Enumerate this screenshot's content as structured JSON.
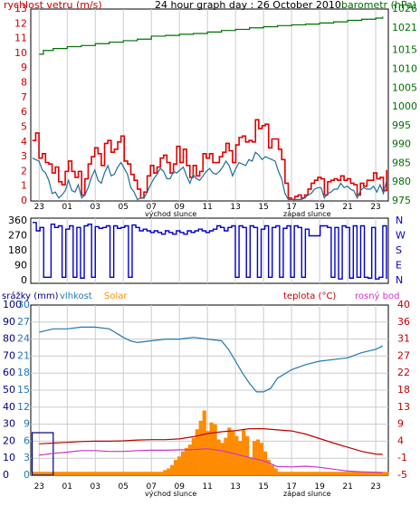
{
  "chart_data": [
    {
      "type": "line",
      "title": "24 hour graph day : 26 October 2010",
      "left_axis_label": "rychlost vetru (m/s)",
      "right_axis_label": "barometr (hPa)",
      "left_ticks": [
        "0",
        "1",
        "2",
        "3",
        "4",
        "5",
        "6",
        "7",
        "8",
        "9",
        "10",
        "11",
        "12",
        "13"
      ],
      "right_ticks": [
        "975",
        "980",
        "985",
        "990",
        "995",
        "1000",
        "1005",
        "1010",
        "1015",
        "1021",
        "1026"
      ],
      "x_ticks": [
        "23",
        "01",
        "03",
        "05",
        "07",
        "09",
        "11",
        "13",
        "15",
        "17",
        "19",
        "21",
        "23"
      ],
      "annotations": [
        "východ slunce",
        "západ slunce"
      ],
      "ylim_left": [
        0,
        13
      ],
      "ylim_right": [
        975,
        1026
      ],
      "colors": {
        "gust": "#e00000",
        "wind": "#1e6f9a",
        "pressure": "#007000",
        "left_axis": "#cc0000",
        "right_axis": "#007000"
      },
      "series": [
        {
          "role": "gust",
          "axis": "left",
          "values": [
            4.1,
            4.6,
            2.9,
            3.2,
            2.6,
            2.5,
            1.9,
            2.3,
            1.3,
            1.1,
            2.0,
            2.7,
            2.0,
            1.6,
            2.0,
            0.4,
            1.5,
            2.5,
            3.0,
            3.6,
            3.2,
            2.4,
            3.9,
            4.1,
            3.3,
            3.5,
            4.0,
            4.4,
            2.7,
            2.5,
            1.8,
            1.4,
            0.8,
            0.2,
            0.6,
            1.7,
            2.4,
            1.9,
            2.3,
            2.9,
            3.1,
            2.6,
            1.9,
            2.5,
            3.7,
            2.6,
            3.5,
            2.4,
            1.6,
            2.4,
            1.7,
            2.0,
            3.2,
            2.9,
            3.2,
            2.6,
            2.6,
            3.0,
            3.3,
            3.9,
            3.4,
            2.6,
            3.8,
            4.3,
            4.4,
            4.0,
            4.1,
            4.0,
            5.5,
            4.9,
            5.1,
            5.2,
            3.6,
            4.2,
            4.2,
            3.5,
            2.8,
            1.2,
            0.2,
            0.1,
            0.3,
            0.4,
            0.2,
            0.4,
            0.8,
            1.2,
            1.4,
            1.6,
            1.5,
            0.4,
            1.3,
            1.4,
            1.5,
            1.4,
            1.7,
            1.4,
            1.5,
            1.2,
            1.1,
            0.4,
            1.2,
            1.0,
            1.4,
            1.4,
            1.9,
            1.5,
            1.6,
            0.7,
            2.1
          ]
        },
        {
          "role": "wind",
          "axis": "left",
          "values": [
            2.9,
            2.8,
            2.7,
            2.1,
            1.9,
            1.4,
            0.5,
            0.6,
            0.2,
            0.4,
            0.7,
            1.4,
            0.7,
            0.6,
            1.1,
            0.2,
            0.4,
            0.9,
            1.6,
            2.1,
            1.4,
            1.2,
            1.9,
            2.4,
            1.7,
            1.8,
            2.3,
            2.6,
            2.2,
            1.8,
            0.9,
            0.6,
            0.1,
            0.2,
            0.2,
            0.6,
            1.1,
            1.5,
            1.8,
            2.2,
            2.0,
            1.5,
            1.5,
            2.0,
            1.9,
            2.1,
            2.3,
            1.7,
            1.2,
            1.8,
            1.5,
            1.4,
            1.7,
            2.0,
            2.2,
            1.9,
            1.8,
            2.0,
            2.3,
            2.7,
            2.4,
            1.7,
            2.2,
            2.6,
            2.5,
            2.4,
            2.8,
            2.7,
            3.3,
            3.1,
            2.8,
            3.0,
            2.9,
            2.8,
            2.7,
            2.0,
            1.5,
            0.5,
            0.1,
            0.1,
            0.1,
            0.1,
            0.1,
            0.2,
            0.4,
            0.5,
            0.8,
            0.9,
            0.9,
            0.2,
            0.5,
            0.6,
            0.8,
            0.8,
            1.2,
            0.9,
            1.0,
            0.8,
            0.7,
            0.2,
            0.7,
            0.9,
            0.8,
            0.8,
            1.0,
            0.6,
            1.1,
            0.5,
            1.4
          ]
        },
        {
          "role": "pressure",
          "axis": "right",
          "x": [
            -1,
            -0.7,
            0,
            1,
            2,
            3,
            4,
            5,
            6,
            7,
            8,
            9,
            10,
            11,
            12,
            13,
            14,
            15,
            16,
            17,
            18,
            19,
            20,
            21,
            22,
            23,
            23.5
          ],
          "values": [
            1014,
            1015,
            1015.5,
            1016,
            1016.3,
            1016.8,
            1017.2,
            1017.6,
            1018,
            1018.8,
            1019,
            1019.3,
            1019.5,
            1019.9,
            1020.3,
            1020.6,
            1021,
            1021.3,
            1021.6,
            1021.8,
            1022,
            1022.3,
            1022.6,
            1023,
            1023.3,
            1023.6,
            1024
          ]
        }
      ]
    },
    {
      "type": "line",
      "left_ticks": [
        "0",
        "90",
        "180",
        "270",
        "360"
      ],
      "right_ticks": [
        "N",
        "W",
        "S",
        "E",
        "N"
      ],
      "ylim": [
        0,
        360
      ],
      "colors": {
        "direction": "#0000c8"
      },
      "series": [
        {
          "role": "wind-direction",
          "values": [
            350,
            300,
            320,
            20,
            20,
            340,
            320,
            330,
            20,
            310,
            330,
            20,
            320,
            15,
            330,
            340,
            20,
            325,
            315,
            320,
            330,
            20,
            330,
            315,
            320,
            330,
            20,
            335,
            320,
            300,
            310,
            300,
            290,
            300,
            290,
            280,
            300,
            290,
            280,
            300,
            290,
            280,
            300,
            290,
            300,
            310,
            300,
            290,
            300,
            310,
            330,
            320,
            300,
            320,
            330,
            20,
            330,
            320,
            20,
            330,
            320,
            20,
            310,
            330,
            20,
            320,
            330,
            20,
            315,
            330,
            20,
            330,
            320,
            20,
            310,
            270,
            270,
            270,
            330,
            330,
            320,
            20,
            320,
            10,
            330,
            320,
            15,
            330,
            20,
            330,
            20,
            15,
            320,
            10,
            20,
            330,
            10
          ]
        }
      ]
    },
    {
      "type": "line",
      "label_rain": "srážky (mm)",
      "label_humidity": "vlhkost",
      "label_solar": "Solar",
      "label_temp": "teplota (°C)",
      "label_dew": "rosný bod",
      "left_ticks_a": [
        "0",
        "10",
        "20",
        "30",
        "40",
        "50",
        "60",
        "70",
        "80",
        "90",
        "100"
      ],
      "left_ticks_b": [
        "0",
        "3",
        "6",
        "9",
        "12",
        "15",
        "18",
        "21",
        "24",
        "27",
        "30"
      ],
      "right_ticks": [
        "-5",
        "-1",
        "4",
        "9",
        "13",
        "18",
        "22",
        "27",
        "31",
        "36",
        "40"
      ],
      "colors": {
        "rain": "#000080",
        "humidity": "#1f78b4",
        "solar": "#ff8c00",
        "temperature": "#c00000",
        "dew": "#cc33cc",
        "axis_a": "#000080",
        "axis_b": "#1f78b4",
        "right_axis": "#c00000"
      },
      "series": [
        {
          "role": "humidity",
          "axis": "percent",
          "x": [
            -1,
            -0.5,
            0,
            1,
            2,
            3,
            4,
            5,
            5.5,
            6,
            7,
            8,
            9,
            10,
            11,
            12,
            12.5,
            13,
            13.5,
            14,
            14.5,
            15,
            15.5,
            16,
            17,
            18,
            19,
            20,
            21,
            22,
            23,
            23.5
          ],
          "values": [
            84,
            85,
            86,
            86,
            87,
            87,
            86,
            81,
            79,
            78,
            79,
            80,
            80,
            81,
            80,
            79,
            74,
            67,
            60,
            54,
            49,
            49,
            51,
            57,
            62,
            65,
            67,
            68,
            69,
            72,
            74,
            76
          ]
        },
        {
          "role": "temperature",
          "axis": "celsius",
          "x": [
            -1,
            0,
            1,
            2,
            3,
            4,
            5,
            6,
            7,
            8,
            9,
            10,
            11,
            12,
            13,
            14,
            15,
            16,
            17,
            18,
            19,
            20,
            21,
            22,
            23,
            23.5
          ],
          "values": [
            3.3,
            3.5,
            3.7,
            3.9,
            4.0,
            4.0,
            4.1,
            4.3,
            4.4,
            4.4,
            4.6,
            5.2,
            6.0,
            6.5,
            6.8,
            7.3,
            7.3,
            7.0,
            6.7,
            5.9,
            4.7,
            3.5,
            2.4,
            1.3,
            0.6,
            0.5
          ]
        },
        {
          "role": "dew-point",
          "axis": "celsius",
          "x": [
            -1,
            0,
            1,
            2,
            3,
            4,
            5,
            6,
            7,
            8,
            9,
            10,
            11,
            12,
            13,
            14,
            15,
            16,
            17,
            18,
            19,
            20,
            21,
            22,
            23,
            23.5
          ],
          "values": [
            0.3,
            0.8,
            1.1,
            1.5,
            1.5,
            1.3,
            1.3,
            1.5,
            1.6,
            1.6,
            1.7,
            1.8,
            2.0,
            1.5,
            0.6,
            -0.3,
            -1.2,
            -2.7,
            -2.8,
            -2.6,
            -2.9,
            -3.4,
            -3.9,
            -4.1,
            -4.2,
            -4.3
          ]
        },
        {
          "role": "solar",
          "axis": "percent",
          "values": [
            2,
            2,
            2,
            2,
            2,
            2,
            2,
            2,
            2,
            2,
            2,
            2,
            2,
            2,
            2,
            2,
            2,
            2,
            2,
            2,
            2,
            2,
            2,
            2,
            2,
            2,
            2,
            2,
            2,
            2,
            2,
            2,
            2,
            2,
            2,
            2,
            2,
            3,
            4,
            6,
            9,
            11,
            14,
            16,
            18,
            22,
            27,
            32,
            38,
            26,
            31,
            30,
            21,
            19,
            22,
            28,
            26,
            23,
            20,
            27,
            23,
            10,
            20,
            21,
            19,
            14,
            9,
            6,
            4,
            2,
            2,
            2,
            2,
            2,
            2,
            2,
            2,
            2,
            2,
            2,
            2,
            2,
            2,
            2,
            2,
            2,
            2,
            2,
            2,
            2,
            2,
            2,
            2,
            2,
            2,
            2,
            2,
            2,
            2,
            2
          ]
        },
        {
          "role": "rain",
          "axis": "percent",
          "x": [
            -1.5,
            0
          ],
          "values": [
            25,
            25
          ]
        }
      ],
      "x_ticks": [
        "23",
        "01",
        "03",
        "05",
        "07",
        "09",
        "11",
        "13",
        "15",
        "17",
        "19",
        "21",
        "23"
      ],
      "annotations": [
        "východ slunce",
        "západ slunce"
      ]
    }
  ]
}
